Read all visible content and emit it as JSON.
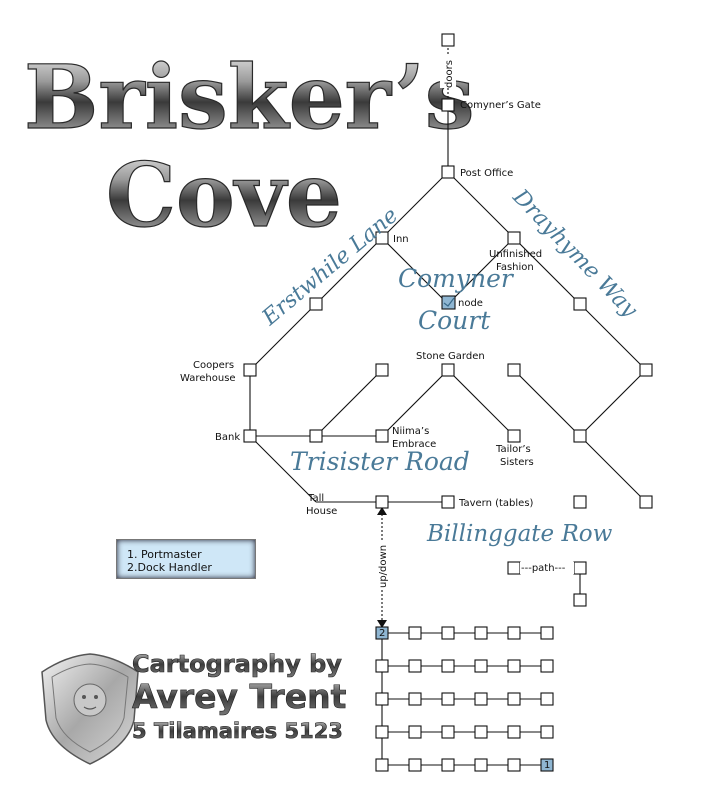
{
  "title": {
    "line1": "Brisker’s",
    "line2": "Cove"
  },
  "streets": {
    "erstwhile": "Erstwhile Lane",
    "drayhyme": "Drayhyme Way",
    "comyner_court_1": "Comyner",
    "comyner_court_2": "Court",
    "trisister": "Trisister Road",
    "billinggate": "Billinggate Row"
  },
  "places": {
    "comyners_gate": "Comyner’s Gate",
    "post_office": "Post Office",
    "inn": "Inn",
    "unfinished_1": "Unfinished",
    "unfinished_2": "Fashion",
    "node": "node",
    "coopers_1": "Coopers",
    "coopers_2": "Warehouse",
    "stone_garden": "Stone Garden",
    "bank": "Bank",
    "niima_1": "Niima’s",
    "niima_2": "Embrace",
    "tailors_1": "Tailor’s",
    "tailors_2": "Sisters",
    "tall_1": "Tall",
    "tall_2": "House",
    "tavern": "Tavern (tables)"
  },
  "connectors": {
    "doors": "doors",
    "up_down": "up/down",
    "path": "---path---"
  },
  "grid_markers": {
    "start": "2",
    "end": "1"
  },
  "legend": {
    "item1": "1. Portmaster",
    "item2": "2.Dock Handler"
  },
  "credit": {
    "line1": "Cartography by",
    "line2": "Avrey Trent",
    "line3": "5 Tilamaires 5123"
  },
  "colors": {
    "street_label": "#4a7a98",
    "highlight_node": "#8fb6d2",
    "legend_fill": "#cfe7f7"
  }
}
